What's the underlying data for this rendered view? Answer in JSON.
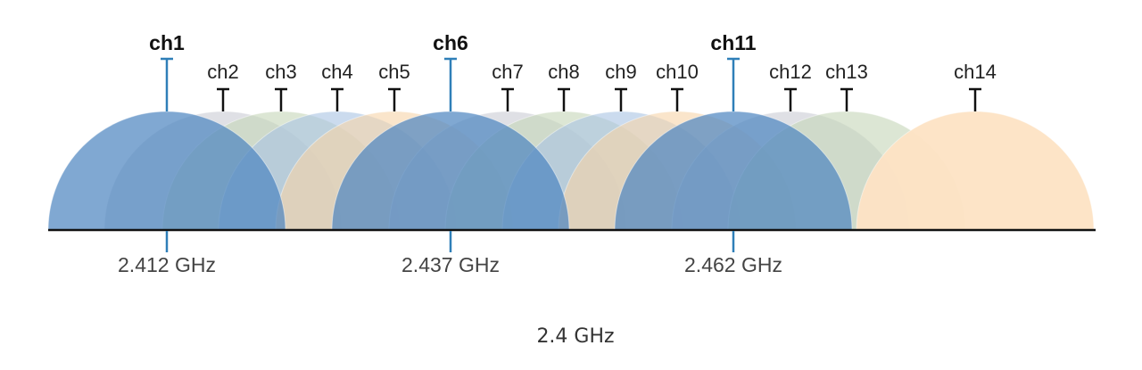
{
  "channels": [
    "ch1",
    "ch2",
    "ch3",
    "ch4",
    "ch5",
    "ch6",
    "ch7",
    "ch8",
    "ch9",
    "ch10",
    "ch11",
    "ch12",
    "ch13",
    "ch14"
  ],
  "frequencies": [
    "2.412 GHz",
    "2.437 GHz",
    "2.462 GHz"
  ],
  "caption": "2.4 GHz"
}
